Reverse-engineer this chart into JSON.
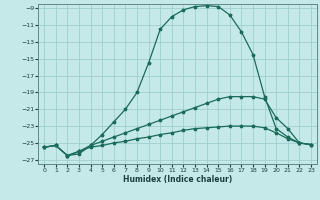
{
  "title": "",
  "xlabel": "Humidex (Indice chaleur)",
  "bg_color": "#c5e8e8",
  "grid_color": "#9fcece",
  "line_color": "#1a6b5a",
  "xlim": [
    -0.5,
    23.5
  ],
  "ylim": [
    -27.5,
    -8.5
  ],
  "xticks": [
    0,
    1,
    2,
    3,
    4,
    5,
    6,
    7,
    8,
    9,
    10,
    11,
    12,
    13,
    14,
    15,
    16,
    17,
    18,
    19,
    20,
    21,
    22,
    23
  ],
  "yticks": [
    -27,
    -25,
    -23,
    -21,
    -19,
    -17,
    -15,
    -13,
    -11,
    -9
  ],
  "line1_x": [
    0,
    1,
    2,
    3,
    4,
    5,
    6,
    7,
    8,
    9,
    10,
    11,
    12,
    13,
    14,
    15,
    16,
    17,
    18,
    19,
    20,
    21,
    22,
    23
  ],
  "line1_y": [
    -25.5,
    -25.3,
    -26.5,
    -26.3,
    -25.3,
    -24.0,
    -22.5,
    -21.0,
    -19.0,
    -15.5,
    -11.5,
    -10.0,
    -9.2,
    -8.8,
    -8.7,
    -8.8,
    -9.8,
    -11.8,
    -14.5,
    -19.5,
    -23.3,
    -24.3,
    -25.0,
    -25.2
  ],
  "line2_x": [
    0,
    1,
    2,
    3,
    4,
    5,
    6,
    7,
    8,
    9,
    10,
    11,
    12,
    13,
    14,
    15,
    16,
    17,
    18,
    19,
    20,
    21,
    22,
    23
  ],
  "line2_y": [
    -25.5,
    -25.3,
    -26.5,
    -26.0,
    -25.3,
    -24.8,
    -24.3,
    -23.8,
    -23.3,
    -22.8,
    -22.3,
    -21.8,
    -21.3,
    -20.8,
    -20.3,
    -19.8,
    -19.5,
    -19.5,
    -19.5,
    -19.8,
    -22.0,
    -23.3,
    -25.0,
    -25.2
  ],
  "line3_x": [
    0,
    1,
    2,
    3,
    4,
    5,
    6,
    7,
    8,
    9,
    10,
    11,
    12,
    13,
    14,
    15,
    16,
    17,
    18,
    19,
    20,
    21,
    22,
    23
  ],
  "line3_y": [
    -25.5,
    -25.3,
    -26.5,
    -26.0,
    -25.5,
    -25.3,
    -25.0,
    -24.8,
    -24.5,
    -24.3,
    -24.0,
    -23.8,
    -23.5,
    -23.3,
    -23.2,
    -23.1,
    -23.0,
    -23.0,
    -23.0,
    -23.2,
    -23.8,
    -24.5,
    -25.0,
    -25.2
  ]
}
